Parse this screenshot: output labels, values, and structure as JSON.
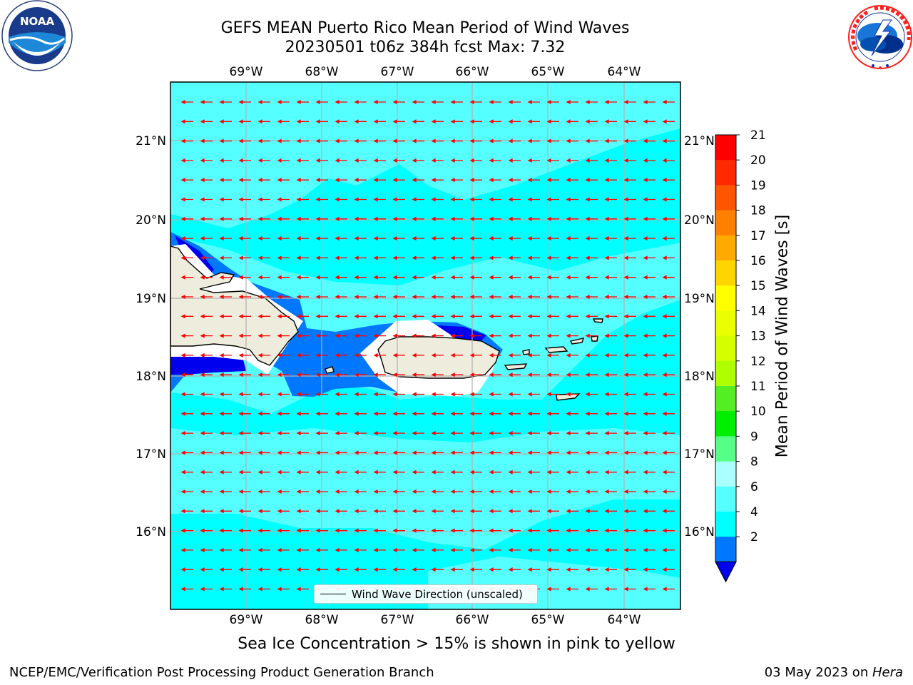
{
  "header": {
    "title_line1": "GEFS MEAN Puerto Rico Mean Period of Wind Waves",
    "title_line2": "20230501 t06z 384h fcst   Max: 7.32"
  },
  "logos": {
    "left": {
      "name": "noaa-logo-icon",
      "text": "NOAA"
    },
    "right": {
      "name": "nws-logo-icon"
    }
  },
  "map": {
    "lon_labels": [
      "69°W",
      "68°W",
      "67°W",
      "66°W",
      "65°W",
      "64°W"
    ],
    "lat_labels": [
      "21°N",
      "20°N",
      "19°N",
      "18°N",
      "17°N",
      "16°N"
    ],
    "legend_label": "Wind Wave Direction (unscaled)",
    "arrow_color": "#ff0000",
    "land_color": "#eeecdc",
    "ocean_color": "#00ffff"
  },
  "colorbar": {
    "label": "Mean Period of Wind Waves [s]",
    "ticks": [
      "21",
      "20",
      "19",
      "18",
      "17",
      "16",
      "15",
      "14",
      "13",
      "12",
      "11",
      "10",
      "9",
      "8",
      "6",
      "4",
      "2"
    ],
    "colors": [
      "#ff0000",
      "#ff2a00",
      "#ff5500",
      "#ff8000",
      "#ffaa00",
      "#ffd500",
      "#ffff00",
      "#eaff00",
      "#d5ff00",
      "#b0ff00",
      "#55ee22",
      "#00ee00",
      "#55ff88",
      "#aaffff",
      "#55ffff",
      "#00ffff",
      "#0077ff",
      "#0000ee"
    ]
  },
  "caption": "Sea Ice Concentration > 15% is shown in pink to yellow",
  "footer": {
    "left": "NCEP/EMC/Verification Post Processing Product Generation Branch",
    "right_date": "03 May 2023 on ",
    "right_machine": "Hera"
  }
}
